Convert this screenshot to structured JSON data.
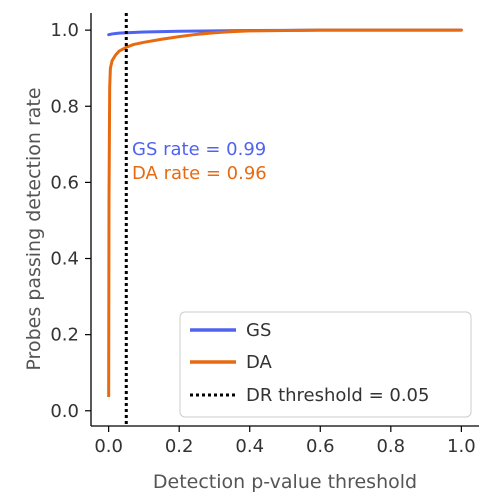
{
  "chart_data": {
    "type": "line",
    "xlabel": "Detection p-value threshold",
    "ylabel": "Probes passing detection rate",
    "xlim": [
      -0.05,
      1.05
    ],
    "ylim": [
      -0.04,
      1.045
    ],
    "xticks": [
      0.0,
      0.2,
      0.4,
      0.6,
      0.8,
      1.0
    ],
    "xtick_labels": [
      "0.0",
      "0.2",
      "0.4",
      "0.6",
      "0.8",
      "1.0"
    ],
    "yticks": [
      0.0,
      0.2,
      0.4,
      0.6,
      0.8,
      1.0
    ],
    "ytick_labels": [
      "0.0",
      "0.2",
      "0.4",
      "0.6",
      "0.8",
      "1.0"
    ],
    "grid": false,
    "legend_position": "bottom-right",
    "series": [
      {
        "name": "GS",
        "color": "#5063f0",
        "x": [
          0.0,
          0.01,
          0.02,
          0.03,
          0.05,
          0.1,
          0.2,
          0.3,
          0.4,
          0.5,
          0.6,
          0.8,
          1.0
        ],
        "y": [
          0.988,
          0.99,
          0.991,
          0.992,
          0.993,
          0.995,
          0.997,
          0.998,
          0.999,
          0.9995,
          1.0,
          1.0,
          1.0
        ]
      },
      {
        "name": "DA",
        "color": "#e86a10",
        "x": [
          0.0,
          0.001,
          0.003,
          0.005,
          0.01,
          0.02,
          0.03,
          0.05,
          0.07,
          0.1,
          0.15,
          0.2,
          0.25,
          0.3,
          0.35,
          0.4,
          0.5,
          0.6,
          0.8,
          1.0
        ],
        "y": [
          0.0,
          0.55,
          0.85,
          0.9,
          0.92,
          0.935,
          0.945,
          0.955,
          0.962,
          0.968,
          0.976,
          0.983,
          0.989,
          0.993,
          0.996,
          0.998,
          0.999,
          1.0,
          1.0,
          1.0
        ]
      }
    ],
    "threshold": {
      "name": "DR threshold = 0.05",
      "x": 0.05,
      "color": "#000000"
    },
    "annotations": [
      {
        "text": "GS rate = 0.99",
        "color": "#5063f0"
      },
      {
        "text": "DA rate = 0.96",
        "color": "#e86a10"
      }
    ]
  }
}
